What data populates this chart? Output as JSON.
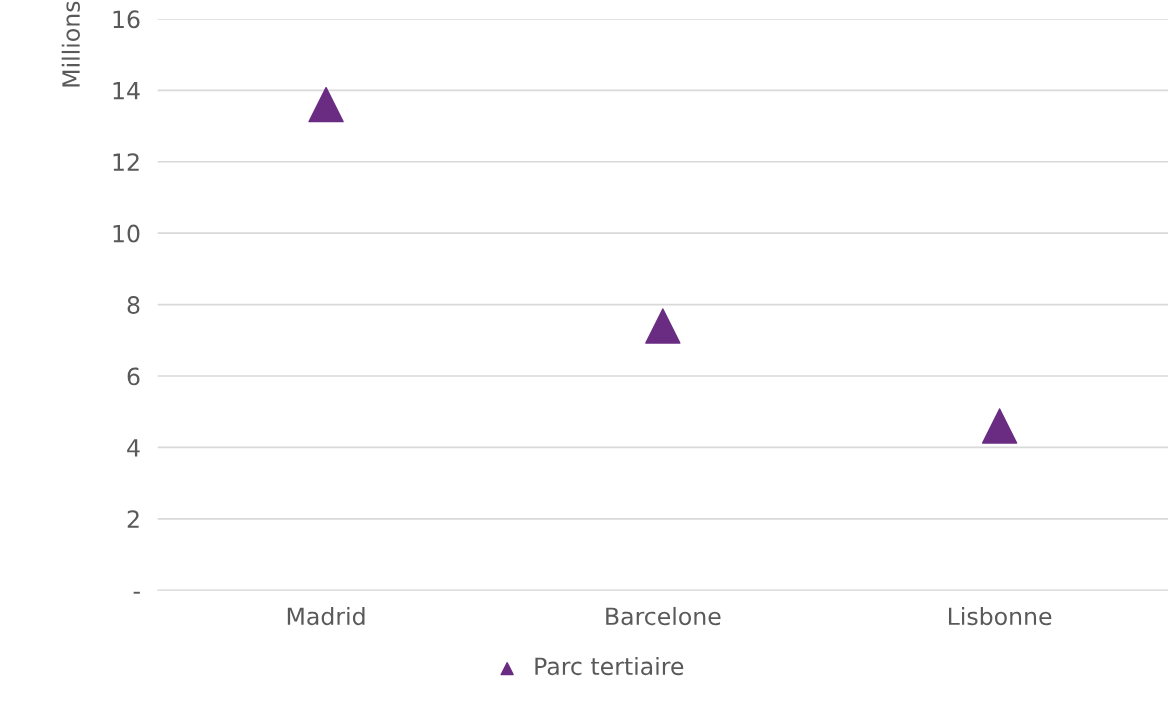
{
  "chart_data": {
    "type": "scatter",
    "ylabel": "Millions",
    "categories": [
      "Madrid",
      "Barcelone",
      "Lisbonne"
    ],
    "series": [
      {
        "name": "Parc tertiaire",
        "color": "#6a2c82",
        "values": [
          13.6,
          7.4,
          4.6
        ]
      }
    ],
    "ylim": [
      0,
      16
    ],
    "yticks": [
      {
        "value": 0,
        "label": "-"
      },
      2,
      4,
      6,
      8,
      10,
      12,
      14,
      16
    ],
    "grid": "y",
    "legend": "bottom",
    "marker": "triangle"
  }
}
